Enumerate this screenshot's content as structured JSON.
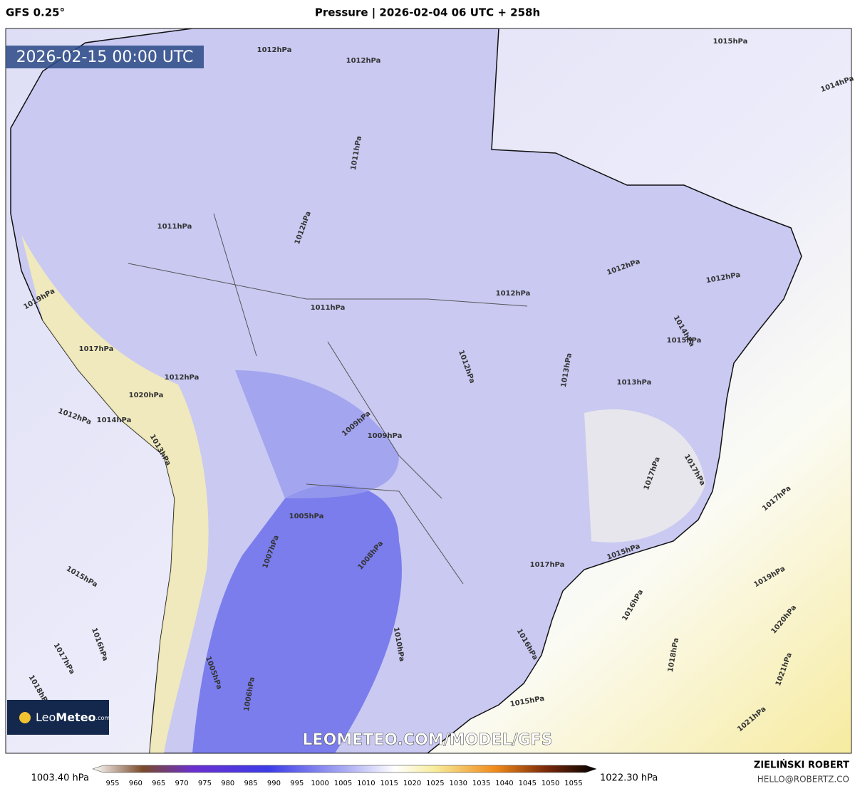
{
  "header": {
    "model": "GFS 0.25°",
    "title": "Pressure | 2026-02-04 06 UTC + 258h",
    "valid_time": "2026-02-15 00:00 UTC"
  },
  "map": {
    "isobar_labels": [
      "1015hPa",
      "1014hPa",
      "1012hPa",
      "1012hPa",
      "1011hPa",
      "1012hPa",
      "1011hPa",
      "1012hPa",
      "1012hPa",
      "1012hPa",
      "1011hPa",
      "1014hPa",
      "1015hPa",
      "1013hPa",
      "1012hPa",
      "1013hPa",
      "1009hPa",
      "1009hPa",
      "1005hPa",
      "1008hPa",
      "1017hPa",
      "1017hPa",
      "1017hPa",
      "1017hPa",
      "1015hPa",
      "1019hPa",
      "1020hPa",
      "1016hPa",
      "1018hPa",
      "1021hPa",
      "1021hPa",
      "1015hPa",
      "1016hPa",
      "1010hPa",
      "1019hPa",
      "1017hPa",
      "1012hPa",
      "1020hPa",
      "1014hPa",
      "1012hPa",
      "1013hPa",
      "1015hPa",
      "1016hPa",
      "1017hPa",
      "1018hPa",
      "1006hPa",
      "1005hPa",
      "1007hPa"
    ]
  },
  "watermark": "LEOMETEO.COM/MODEL/GFS",
  "logo": {
    "leo": "Leo",
    "meteo": "Meteo",
    "domain": ".com"
  },
  "colorbar": {
    "min_label": "1003.40 hPa",
    "max_label": "1022.30 hPa",
    "ticks": [
      955,
      960,
      965,
      970,
      975,
      980,
      985,
      990,
      995,
      1000,
      1005,
      1010,
      1015,
      1020,
      1025,
      1030,
      1035,
      1040,
      1045,
      1050,
      1055
    ]
  },
  "credit": {
    "author": "ZIELIŃSKI ROBERT",
    "contact": "HELLO@ROBERTZ.CO"
  }
}
